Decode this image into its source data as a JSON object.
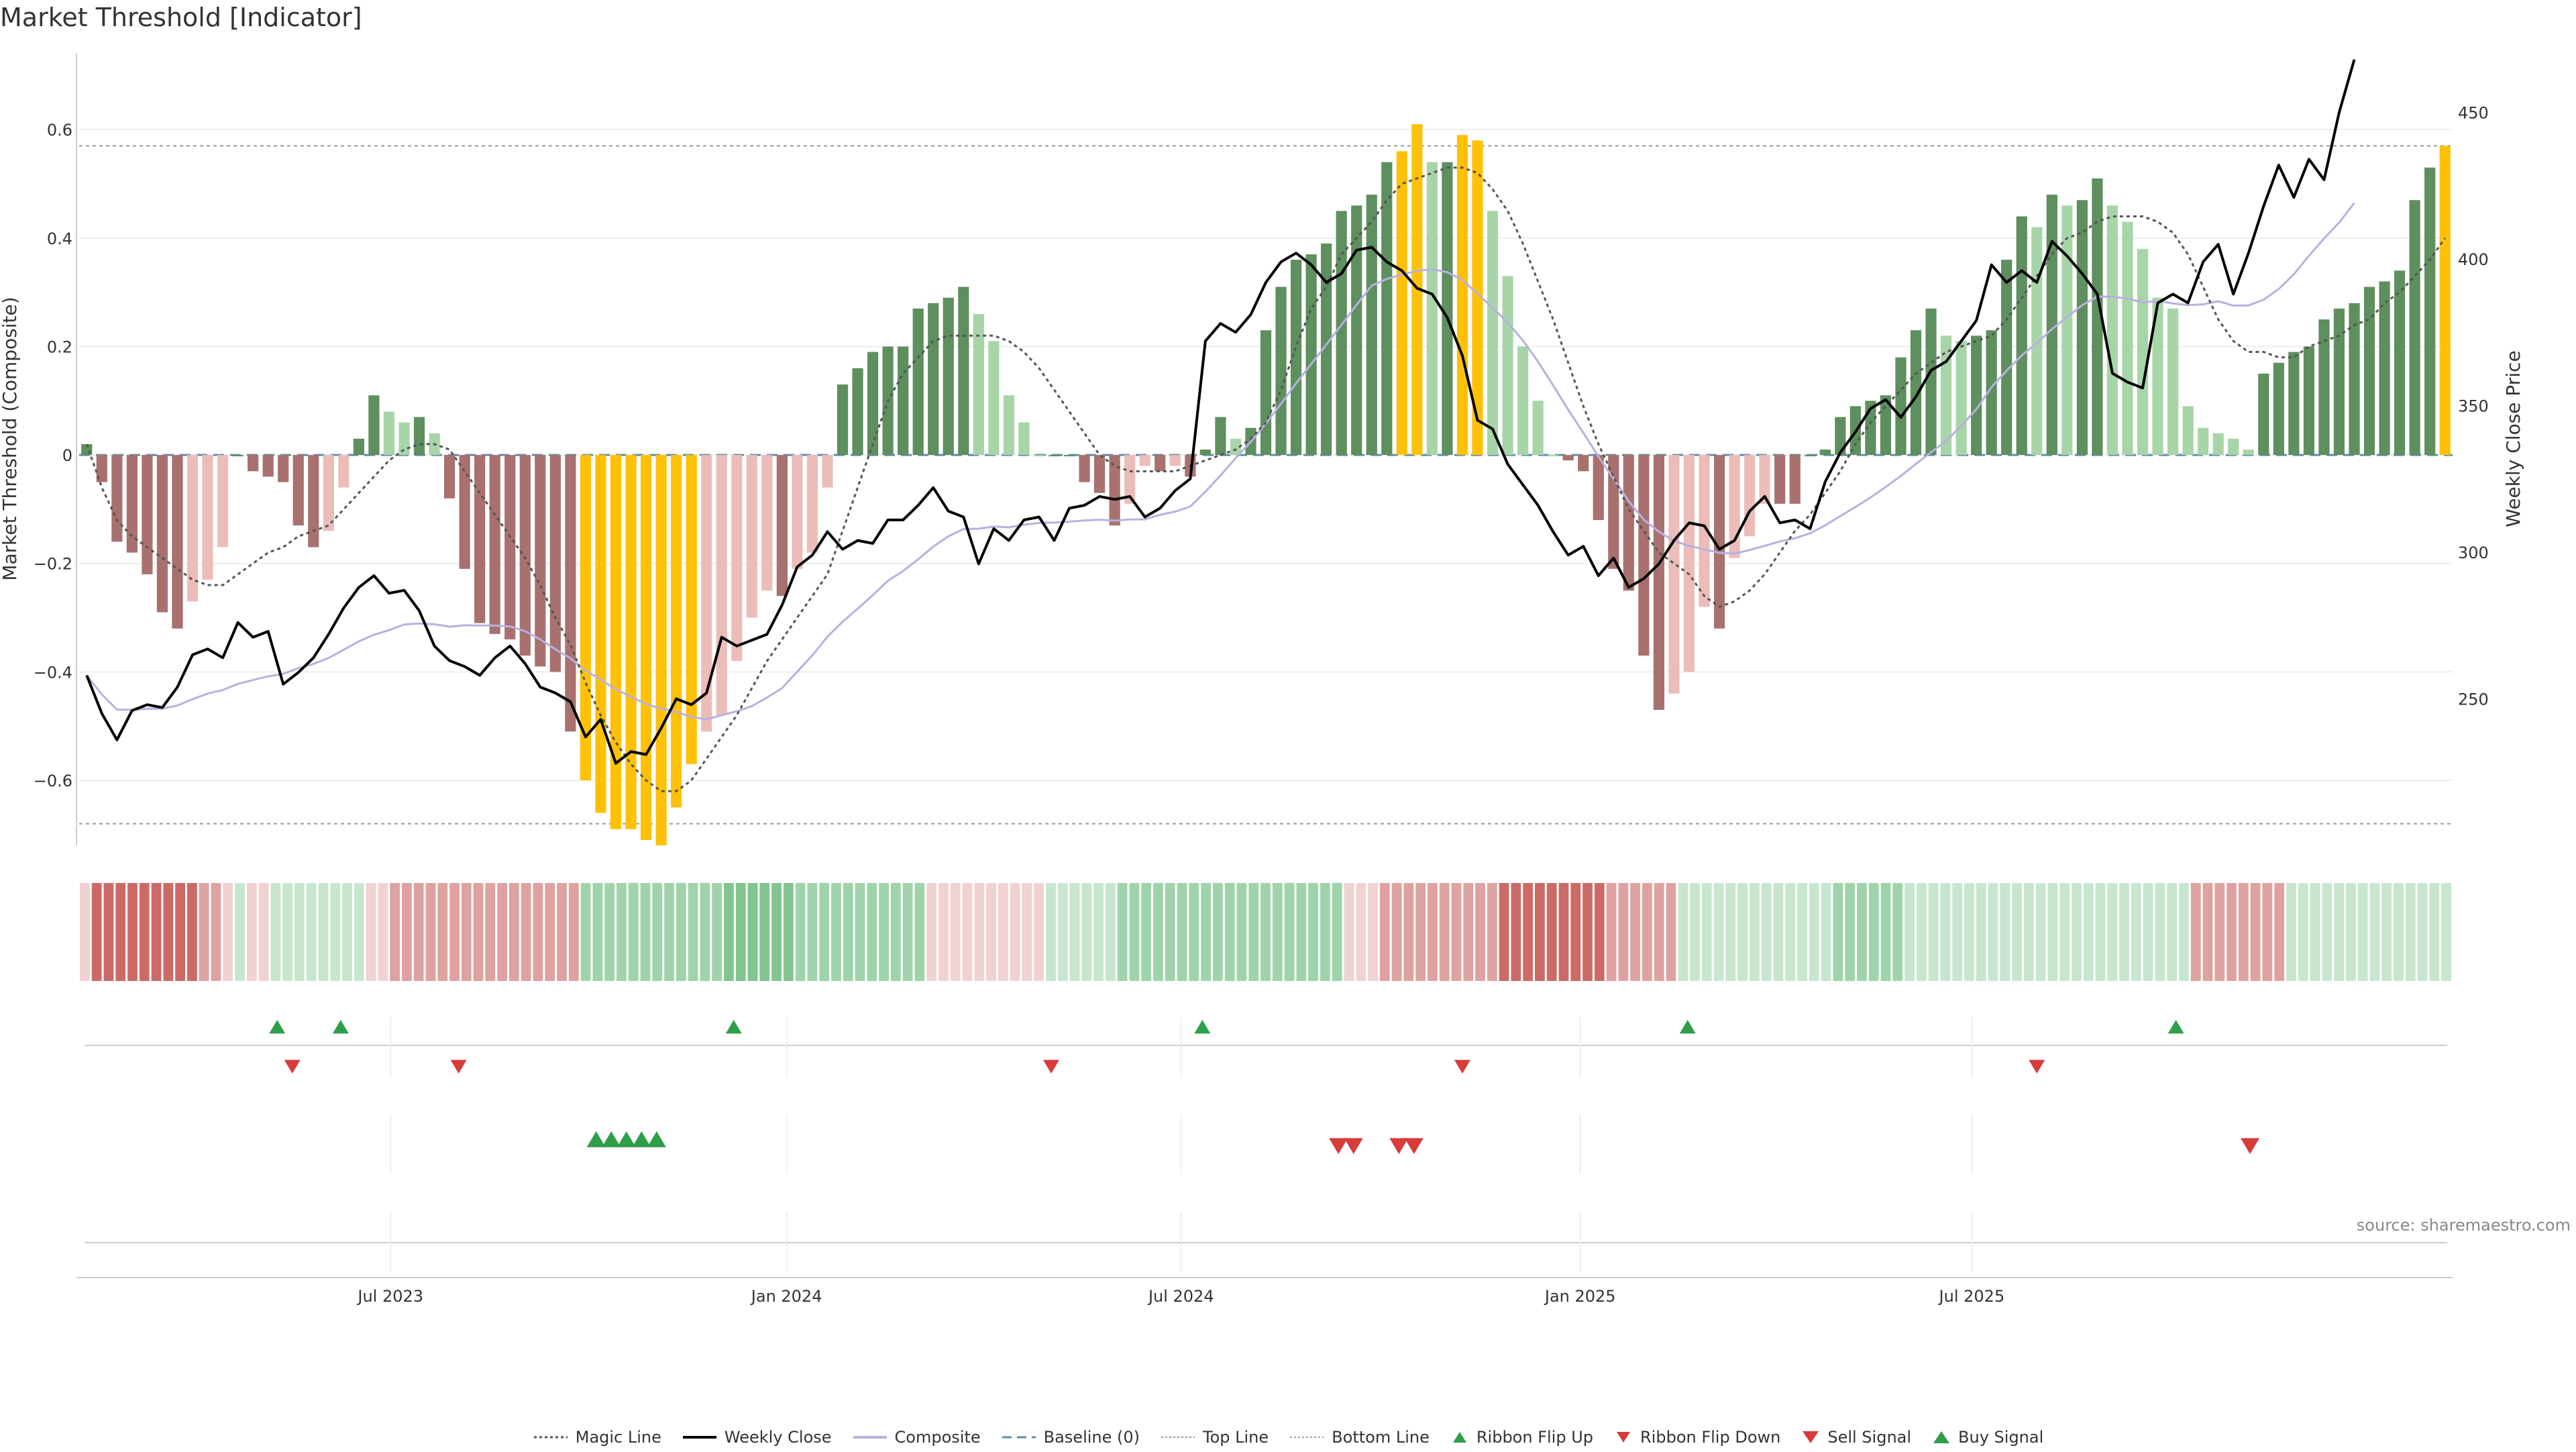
{
  "title": "Market Threshold [Indicator]",
  "source": "source: sharemaestro.com",
  "colors": {
    "positive_strong": "#5e8f5e",
    "positive_light": "#a8d5a8",
    "negative_strong": "#a8716e",
    "negative_light": "#ecbdb8",
    "extreme": "#ffc107",
    "close_line": "#000000",
    "composite_line": "#b8b0e0",
    "magic_line": "#555555",
    "baseline": "#5b8fa8",
    "buy": "#2e9e4b",
    "sell": "#d93a3a",
    "grid": "#eeeeee"
  },
  "legend": {
    "magic": "Magic Line",
    "close": "Weekly Close",
    "composite": "Composite",
    "baseline": "Baseline (0)",
    "top": "Top Line",
    "bottom": "Bottom Line",
    "flip_up": "Ribbon Flip Up",
    "flip_down": "Ribbon Flip Down",
    "sell": "Sell Signal",
    "buy": "Buy Signal"
  },
  "chart_data": {
    "type": "bar",
    "ylabel": "Market Threshold (Composite)",
    "y2label": "Weekly Close Price",
    "ylim": [
      -0.72,
      0.74
    ],
    "y2lim": [
      200,
      470
    ],
    "yticks": [
      0.6,
      0.4,
      0.2,
      0,
      -0.2,
      -0.4,
      -0.6
    ],
    "ytick_labels": [
      "0.6",
      "0.4",
      "0.2",
      "0",
      "−0.2",
      "−0.4",
      "−0.6"
    ],
    "y2ticks": [
      450,
      400,
      350,
      300,
      250
    ],
    "y2tick_labels": [
      "450",
      "400",
      "350",
      "300",
      "250"
    ],
    "x_tick_labels": [
      "Jul 2023",
      "Jan 2024",
      "Jul 2024",
      "Jan 2025",
      "Jul 2025"
    ],
    "x_tick_weeks": [
      20.6,
      46.8,
      72.9,
      99.3,
      125.2
    ],
    "top_line": 0.57,
    "bottom_line": -0.68,
    "baseline": 0,
    "composite": [
      0.02,
      -0.05,
      -0.16,
      -0.18,
      -0.22,
      -0.29,
      -0.32,
      -0.27,
      -0.23,
      -0.17,
      0,
      -0.03,
      -0.04,
      -0.05,
      -0.13,
      -0.17,
      -0.14,
      -0.06,
      0.03,
      0.11,
      0.08,
      0.06,
      0.07,
      0.04,
      -0.08,
      -0.21,
      -0.31,
      -0.33,
      -0.34,
      -0.37,
      -0.39,
      -0.4,
      -0.51,
      -0.6,
      -0.66,
      -0.69,
      -0.69,
      -0.71,
      -0.72,
      -0.65,
      -0.57,
      -0.51,
      -0.48,
      -0.38,
      -0.3,
      -0.25,
      -0.26,
      -0.21,
      -0.18,
      -0.06,
      0.13,
      0.16,
      0.19,
      0.2,
      0.2,
      0.27,
      0.28,
      0.29,
      0.31,
      0.26,
      0.21,
      0.11,
      0.06,
      0,
      0,
      0,
      -0.05,
      -0.07,
      -0.13,
      -0.09,
      -0.02,
      -0.03,
      -0.02,
      -0.04,
      0.01,
      0.07,
      0.03,
      0.05,
      0.23,
      0.31,
      0.36,
      0.37,
      0.39,
      0.45,
      0.46,
      0.48,
      0.54,
      0.56,
      0.61,
      0.54,
      0.54,
      0.59,
      0.58,
      0.45,
      0.33,
      0.2,
      0.1,
      0,
      -0.01,
      -0.03,
      -0.12,
      -0.21,
      -0.25,
      -0.37,
      -0.47,
      -0.44,
      -0.4,
      -0.28,
      -0.32,
      -0.19,
      -0.15,
      -0.09,
      -0.09,
      -0.09,
      0,
      0.01,
      0.07,
      0.09,
      0.1,
      0.11,
      0.18,
      0.23,
      0.27,
      0.22,
      0.21,
      0.22,
      0.23,
      0.36,
      0.44,
      0.42,
      0.48,
      0.46,
      0.47,
      0.51,
      0.46,
      0.43,
      0.38,
      0.29,
      0.27,
      0.09,
      0.05,
      0.04,
      0.03,
      0.01,
      0.15,
      0.17,
      0.19,
      0.2,
      0.25,
      0.27,
      0.28,
      0.31,
      0.32,
      0.34,
      0.47,
      0.53,
      0.57
    ],
    "magic_line": [
      0.02,
      -0.06,
      -0.12,
      -0.15,
      -0.17,
      -0.19,
      -0.21,
      -0.23,
      -0.24,
      -0.24,
      -0.22,
      -0.2,
      -0.18,
      -0.17,
      -0.15,
      -0.14,
      -0.13,
      -0.1,
      -0.07,
      -0.04,
      -0.01,
      0.01,
      0.02,
      0.02,
      0.01,
      -0.03,
      -0.07,
      -0.11,
      -0.15,
      -0.19,
      -0.24,
      -0.3,
      -0.35,
      -0.42,
      -0.48,
      -0.53,
      -0.57,
      -0.6,
      -0.62,
      -0.62,
      -0.6,
      -0.56,
      -0.52,
      -0.48,
      -0.43,
      -0.38,
      -0.34,
      -0.3,
      -0.26,
      -0.22,
      -0.14,
      -0.06,
      0.02,
      0.1,
      0.15,
      0.18,
      0.21,
      0.22,
      0.22,
      0.22,
      0.22,
      0.21,
      0.19,
      0.16,
      0.12,
      0.08,
      0.04,
      0,
      -0.02,
      -0.03,
      -0.03,
      -0.03,
      -0.03,
      -0.02,
      -0.01,
      0,
      0.01,
      0.03,
      0.06,
      0.12,
      0.2,
      0.27,
      0.31,
      0.37,
      0.4,
      0.43,
      0.47,
      0.5,
      0.51,
      0.52,
      0.53,
      0.53,
      0.52,
      0.49,
      0.45,
      0.39,
      0.32,
      0.25,
      0.17,
      0.09,
      0.02,
      -0.04,
      -0.1,
      -0.14,
      -0.18,
      -0.2,
      -0.22,
      -0.26,
      -0.28,
      -0.27,
      -0.25,
      -0.22,
      -0.18,
      -0.14,
      -0.11,
      -0.07,
      -0.03,
      0.02,
      0.06,
      0.09,
      0.12,
      0.15,
      0.17,
      0.19,
      0.2,
      0.21,
      0.22,
      0.25,
      0.29,
      0.33,
      0.37,
      0.4,
      0.41,
      0.43,
      0.44,
      0.44,
      0.44,
      0.43,
      0.41,
      0.37,
      0.31,
      0.25,
      0.21,
      0.19,
      0.19,
      0.18,
      0.18,
      0.2,
      0.21,
      0.22,
      0.24,
      0.25,
      0.28,
      0.3,
      0.33,
      0.36,
      0.4
    ],
    "weekly_close": [
      258,
      245,
      236,
      246,
      248,
      247,
      254,
      265,
      267,
      264,
      276,
      271,
      273,
      255,
      259,
      264,
      272,
      281,
      288,
      292,
      286,
      287,
      280,
      268,
      263,
      261,
      258,
      264,
      268,
      262,
      254,
      252,
      249,
      237,
      243,
      228,
      232,
      231,
      240,
      250,
      248,
      252,
      271,
      268,
      270,
      272,
      282,
      295,
      299,
      307,
      301,
      304,
      303,
      311,
      311,
      316,
      322,
      314,
      312,
      296,
      308,
      304,
      311,
      312,
      304,
      315,
      316,
      319,
      318,
      319,
      312,
      315,
      321,
      325,
      372,
      378,
      375,
      381,
      392,
      399,
      402,
      398,
      392,
      395,
      403,
      404,
      399,
      396,
      390,
      388,
      380,
      367,
      345,
      342,
      330,
      323,
      316,
      307,
      299,
      302,
      292,
      298,
      288,
      291,
      296,
      304,
      310,
      309,
      301,
      304,
      314,
      319,
      310,
      311,
      308,
      324,
      334,
      341,
      349,
      352,
      346,
      353,
      362,
      365,
      372,
      379,
      398,
      392,
      396,
      392,
      406,
      401,
      395,
      388,
      361,
      358,
      356,
      385,
      388,
      385,
      399,
      405,
      388,
      402,
      418,
      432,
      421,
      434,
      427,
      450,
      468
    ]
  },
  "ribbon": [
    -1,
    -3,
    -3,
    -3,
    -3,
    -3,
    -3,
    -3,
    -3,
    -3,
    -2,
    -2,
    -1,
    1,
    -1,
    -1,
    1,
    1,
    1,
    1,
    1,
    1,
    1,
    1,
    -1,
    -1,
    -2,
    -2,
    -2,
    -2,
    -2,
    -2,
    -2,
    -2,
    -2,
    -2,
    -2,
    -2,
    -2,
    -2,
    -2,
    -2,
    2,
    2,
    2,
    2,
    2,
    2,
    2,
    2,
    2,
    2,
    2,
    2,
    3,
    3,
    3,
    3,
    3,
    3,
    2,
    2,
    2,
    2,
    2,
    2,
    2,
    2,
    2,
    2,
    2,
    -1,
    -1,
    -1,
    -1,
    -1,
    -1,
    -1,
    -1,
    -1,
    -1,
    1,
    1,
    1,
    1,
    1,
    1,
    2,
    2,
    2,
    2,
    2,
    2,
    2,
    2,
    2,
    2,
    2,
    2,
    2,
    2,
    2,
    2,
    2,
    2,
    2,
    -1,
    -1,
    -1,
    -2,
    -2,
    -2,
    -2,
    -2,
    -2,
    -2,
    -2,
    -2,
    -2,
    -3,
    -3,
    -3,
    -3,
    -3,
    -3,
    -3,
    -3,
    -3,
    -2,
    -2,
    -2,
    -2,
    -2,
    -2,
    1,
    1,
    1,
    1,
    1,
    1,
    1,
    1,
    1,
    1,
    1,
    1,
    1,
    2,
    2,
    2,
    2,
    2,
    2,
    1,
    1,
    1,
    1,
    1,
    1,
    1,
    1,
    1,
    1,
    1,
    1,
    1,
    1,
    1,
    1,
    1,
    1,
    1,
    1,
    1,
    1,
    1,
    1,
    -2,
    -2,
    -2,
    -2,
    -2,
    -2,
    -2,
    -2,
    1,
    1,
    1,
    1,
    1,
    1,
    1,
    1,
    1,
    1,
    1,
    1,
    1,
    1
  ],
  "signals": {
    "flip_up_weeks": [
      13.1,
      17.3,
      43.3,
      74.3,
      106.4,
      138.7
    ],
    "flip_down_weeks": [
      14.1,
      25.1,
      64.3,
      91.5,
      129.5
    ],
    "buy_weeks": [
      34.2,
      35.2,
      36.2,
      37.2,
      38.2
    ],
    "sell_weeks": [
      83.3,
      84.3,
      87.3,
      88.3,
      143.6
    ]
  }
}
